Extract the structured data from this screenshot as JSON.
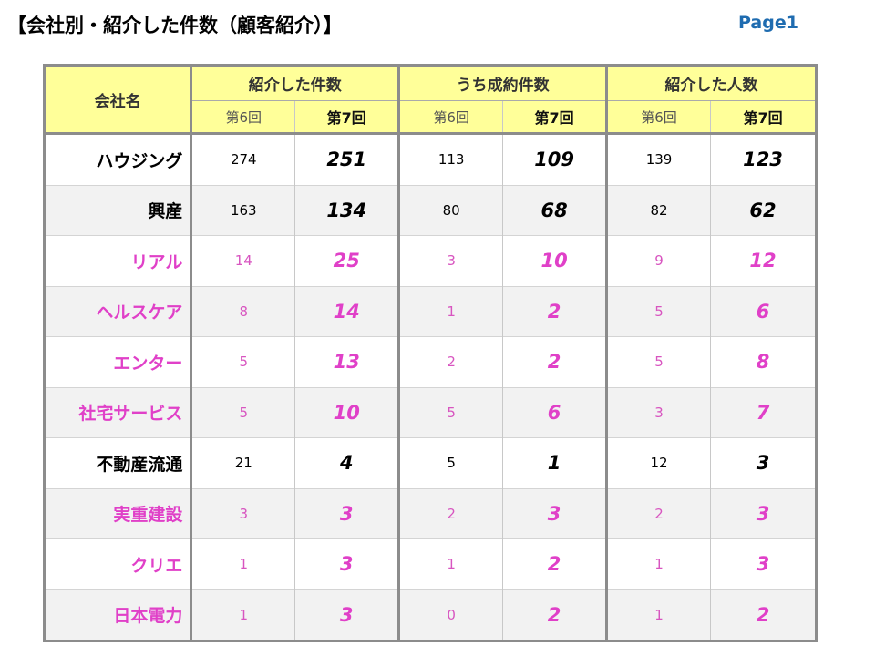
{
  "header": {
    "title": "【会社別・紹介した件数（顧客紹介）】",
    "page_label": "Page1"
  },
  "table": {
    "company_header": "会社名",
    "groups": [
      "紹介した件数",
      "うち成約件数",
      "紹介した人数"
    ],
    "sub_prev": "第6回",
    "sub_cur": "第7回",
    "rows": [
      {
        "name": "ハウジング",
        "color": "black",
        "values": [
          "274",
          "251",
          "113",
          "109",
          "139",
          "123"
        ]
      },
      {
        "name": "興産",
        "color": "black",
        "values": [
          "163",
          "134",
          "80",
          "68",
          "82",
          "62"
        ]
      },
      {
        "name": "リアル",
        "color": "pink",
        "values": [
          "14",
          "25",
          "3",
          "10",
          "9",
          "12"
        ]
      },
      {
        "name": "ヘルスケア",
        "color": "pink",
        "values": [
          "8",
          "14",
          "1",
          "2",
          "5",
          "6"
        ]
      },
      {
        "name": "エンター",
        "color": "pink",
        "values": [
          "5",
          "13",
          "2",
          "2",
          "5",
          "8"
        ]
      },
      {
        "name": "社宅サービス",
        "color": "pink",
        "values": [
          "5",
          "10",
          "5",
          "6",
          "3",
          "7"
        ]
      },
      {
        "name": "不動産流通",
        "color": "black",
        "values": [
          "21",
          "4",
          "5",
          "1",
          "12",
          "3"
        ]
      },
      {
        "name": "実重建設",
        "color": "pink",
        "values": [
          "3",
          "3",
          "2",
          "3",
          "2",
          "3"
        ]
      },
      {
        "name": "クリエ",
        "color": "pink",
        "values": [
          "1",
          "3",
          "1",
          "2",
          "1",
          "3"
        ]
      },
      {
        "name": "日本電力",
        "color": "pink",
        "values": [
          "1",
          "3",
          "0",
          "2",
          "1",
          "2"
        ]
      }
    ]
  },
  "colors": {
    "header_bg": "#ffff99",
    "highlight_text": "#e040c8",
    "page_label": "#1f6cb0",
    "alt_row_bg": "#f2f2f2"
  }
}
